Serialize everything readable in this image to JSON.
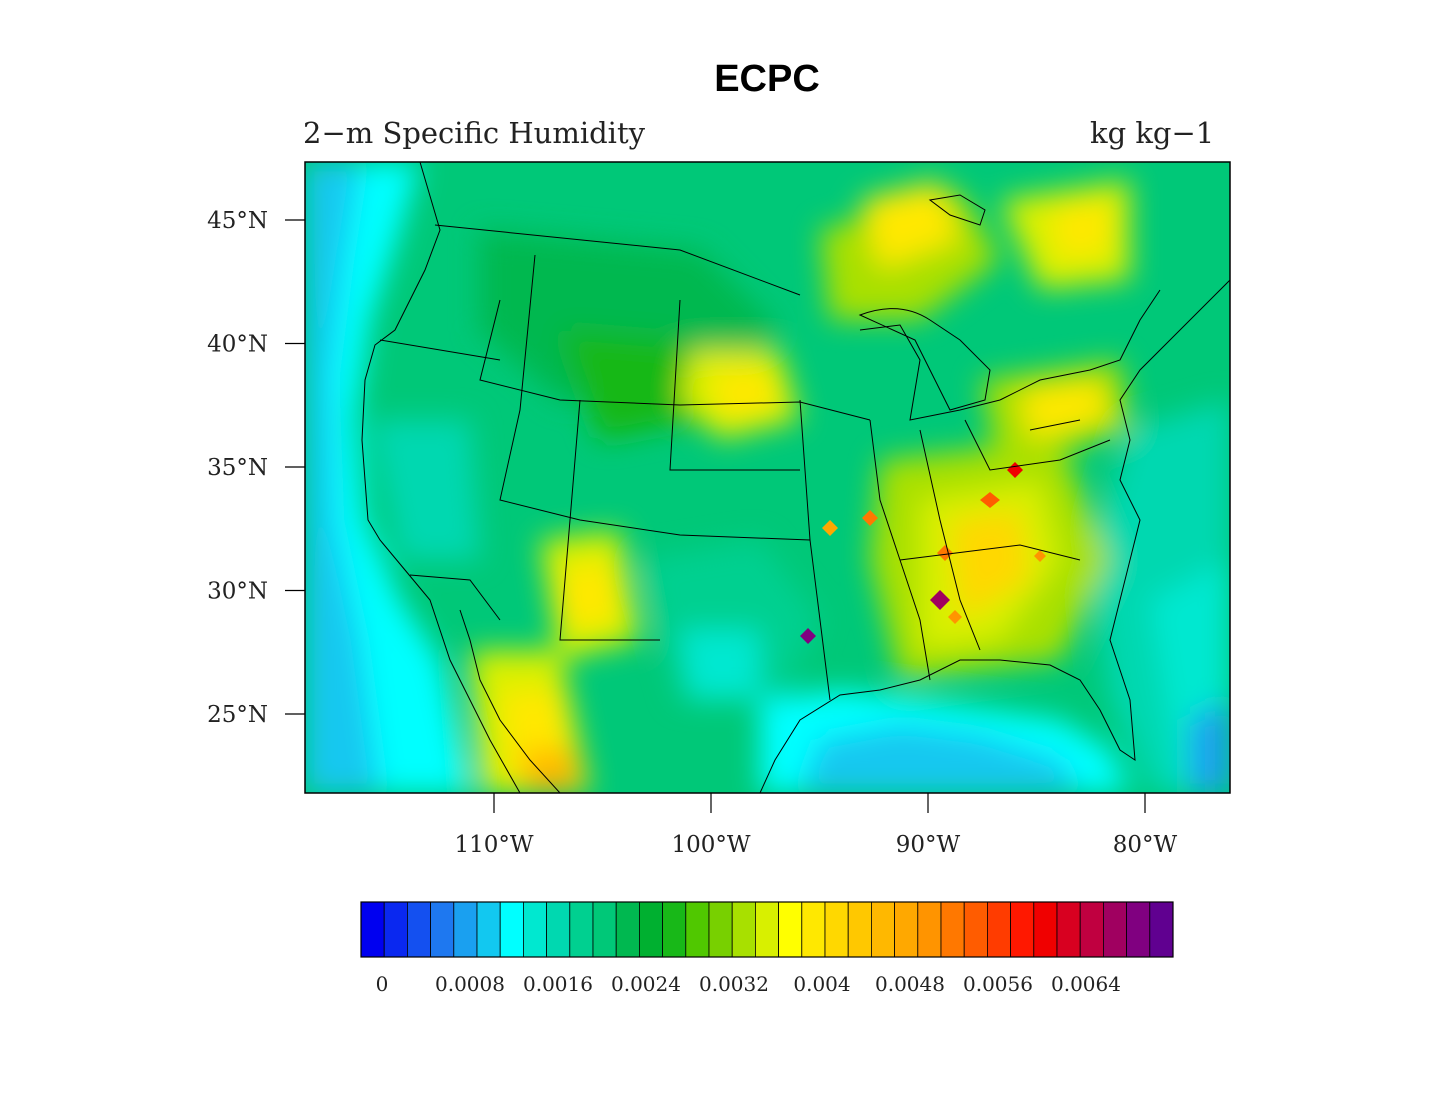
{
  "title": "ECPC",
  "subtitle_left": "2−m Specific Humidity",
  "subtitle_right": "kg kg−1",
  "lat_ticks": [
    {
      "value": 45,
      "label": "45°N"
    },
    {
      "value": 40,
      "label": "40°N"
    },
    {
      "value": 35,
      "label": "35°N"
    },
    {
      "value": 30,
      "label": "30°N"
    },
    {
      "value": 25,
      "label": "25°N"
    }
  ],
  "lon_ticks": [
    {
      "value": -110,
      "label": "110°W"
    },
    {
      "value": -100,
      "label": "100°W"
    },
    {
      "value": -90,
      "label": "90°W"
    },
    {
      "value": -80,
      "label": "80°W"
    }
  ],
  "colorbar": {
    "colors": [
      "#0000f0",
      "#0a28f0",
      "#1450f0",
      "#1e78f0",
      "#1aa0f0",
      "#12c8f0",
      "#00ffff",
      "#00e8d0",
      "#00d8b0",
      "#00d090",
      "#00c878",
      "#00b850",
      "#00b030",
      "#18b818",
      "#50c800",
      "#78d000",
      "#a8e000",
      "#d8f000",
      "#ffff00",
      "#ffe800",
      "#ffd800",
      "#ffc800",
      "#ffb800",
      "#ffa800",
      "#ff9400",
      "#ff7800",
      "#ff5c00",
      "#ff3c00",
      "#ff1800",
      "#f00000",
      "#d80020",
      "#c00040",
      "#a00060",
      "#800080",
      "#600090"
    ],
    "labels": [
      "0",
      "0.0008",
      "0.0016",
      "0.0024",
      "0.0032",
      "0.004",
      "0.0048",
      "0.0056",
      "0.0064"
    ]
  }
}
